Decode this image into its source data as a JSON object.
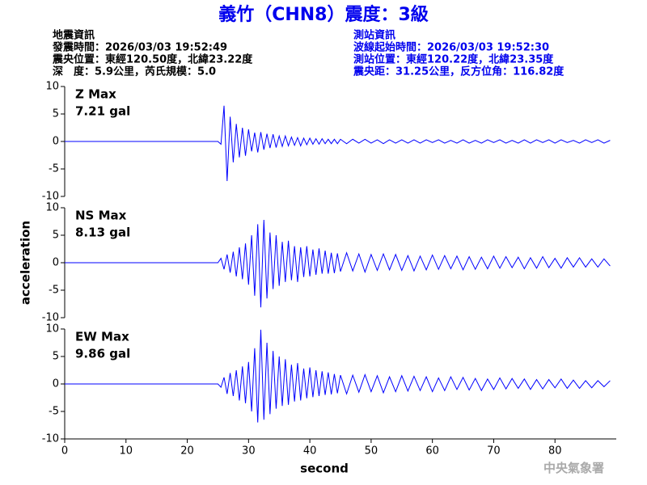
{
  "header": {
    "title": "義竹（CHN8）震度：3級",
    "event": {
      "heading": "地震資訊",
      "lines": [
        "發震時間：2026/03/03 19:52:49",
        "震央位置：東經120.50度，北緯23.22度",
        "深　度：5.9公里，芮氏規模：5.0"
      ]
    },
    "station": {
      "heading": "測站資訊",
      "lines": [
        "波線起始時間：2026/03/03 19:52:30",
        "測站位置：東經120.22度，北緯23.35度",
        "震央距：31.25公里，反方位角：116.82度"
      ]
    }
  },
  "footer": {
    "agency": "中央氣象署"
  },
  "chart_data": [
    {
      "type": "line",
      "annotations": [
        "Z Max",
        "7.21 gal"
      ],
      "annotation_color": "#e00000",
      "x": [
        0,
        25,
        25.5,
        26,
        26.5,
        27,
        27.5,
        28,
        28.5,
        29,
        29.5,
        30,
        30.5,
        31,
        31.5,
        32,
        32.5,
        33,
        33.5,
        34,
        34.5,
        35,
        35.5,
        36,
        36.5,
        37,
        37.5,
        38,
        38.5,
        39,
        39.5,
        40,
        40.5,
        41,
        41.5,
        42,
        42.5,
        43,
        43.5,
        44,
        44.5,
        45,
        46,
        47,
        48,
        49,
        50,
        51,
        52,
        53,
        54,
        55,
        56,
        57,
        58,
        59,
        60,
        61,
        62,
        63,
        64,
        65,
        66,
        67,
        68,
        69,
        70,
        71,
        72,
        73,
        74,
        75,
        76,
        77,
        78,
        79,
        80,
        81,
        82,
        83,
        84,
        85,
        86,
        87,
        88,
        89
      ],
      "series": [
        {
          "color": "#0000ff",
          "values": [
            0,
            0,
            -0.5,
            6.5,
            -7.2,
            4.5,
            -3.8,
            3.2,
            -2.9,
            2.5,
            -2.6,
            2.2,
            -1.8,
            1.6,
            -2.0,
            1.7,
            -1.5,
            1.4,
            -1.2,
            1.3,
            -1.1,
            1.0,
            -0.9,
            1.0,
            -0.8,
            0.8,
            -0.7,
            0.7,
            -0.8,
            0.6,
            -0.6,
            0.6,
            -0.5,
            0.5,
            -0.5,
            0.5,
            -0.4,
            0.4,
            -0.4,
            0.4,
            -0.4,
            0.4,
            -0.4,
            0.4,
            -0.3,
            0.4,
            -0.3,
            0.3,
            -0.4,
            0.3,
            -0.3,
            0.3,
            -0.3,
            0.3,
            -0.3,
            0.3,
            -0.2,
            0.3,
            -0.3,
            0.2,
            -0.3,
            0.3,
            -0.3,
            0.2,
            -0.3,
            0.3,
            -0.2,
            0.3,
            -0.3,
            0.2,
            -0.3,
            0.3,
            -0.3,
            0.3,
            -0.2,
            0.3,
            -0.3,
            0.3,
            -0.2,
            0.2,
            -0.3,
            0.3,
            -0.2,
            0.3,
            -0.3,
            0.2
          ]
        }
      ],
      "xlim": [
        0,
        90
      ],
      "ylim": [
        -10,
        10
      ],
      "yticks": [
        -10,
        -5,
        0,
        5,
        10
      ]
    },
    {
      "type": "line",
      "annotations": [
        "NS Max",
        "8.13 gal"
      ],
      "annotation_color": "#e00000",
      "ylabel": "acceleration",
      "x": [
        0,
        25,
        25.5,
        26,
        26.5,
        27,
        27.5,
        28,
        28.5,
        29,
        29.5,
        30,
        30.5,
        31,
        31.5,
        32,
        32.5,
        33,
        33.5,
        34,
        34.5,
        35,
        35.5,
        36,
        36.5,
        37,
        37.5,
        38,
        38.5,
        39,
        39.5,
        40,
        40.5,
        41,
        41.5,
        42,
        42.5,
        43,
        43.5,
        44,
        44.5,
        45,
        46,
        47,
        48,
        49,
        50,
        51,
        52,
        53,
        54,
        55,
        56,
        57,
        58,
        59,
        60,
        61,
        62,
        63,
        64,
        65,
        66,
        67,
        68,
        69,
        70,
        71,
        72,
        73,
        74,
        75,
        76,
        77,
        78,
        79,
        80,
        81,
        82,
        83,
        84,
        85,
        86,
        87,
        88,
        89
      ],
      "series": [
        {
          "color": "#0000ff",
          "values": [
            0,
            0,
            0.8,
            -1.2,
            1.5,
            -1.8,
            2.0,
            -2.5,
            2.8,
            -3.0,
            3.5,
            -4.0,
            5.0,
            -6.0,
            7.0,
            -8.13,
            7.8,
            -6.5,
            5.5,
            -4.8,
            5.0,
            -4.2,
            3.8,
            -3.5,
            4.0,
            -3.2,
            3.0,
            -3.5,
            2.8,
            -2.6,
            3.0,
            -2.5,
            2.4,
            -2.2,
            2.6,
            -2.0,
            2.2,
            -2.0,
            1.8,
            -1.9,
            1.7,
            -1.6,
            1.8,
            -1.5,
            1.6,
            -1.7,
            1.5,
            -1.4,
            1.6,
            -1.3,
            1.5,
            -1.4,
            1.3,
            -1.5,
            1.2,
            -1.3,
            1.4,
            -1.2,
            1.3,
            -1.1,
            1.2,
            -1.3,
            1.1,
            -1.2,
            1.0,
            -1.1,
            1.2,
            -1.0,
            1.1,
            -0.9,
            1.0,
            -1.1,
            0.9,
            -1.0,
            1.1,
            -0.9,
            0.8,
            -1.0,
            0.9,
            -0.8,
            0.9,
            -0.8,
            0.7,
            -0.8,
            0.7,
            -0.6
          ]
        }
      ],
      "xlim": [
        0,
        90
      ],
      "ylim": [
        -10,
        10
      ],
      "yticks": [
        -10,
        -5,
        0,
        5,
        10
      ]
    },
    {
      "type": "line",
      "annotations": [
        "EW Max",
        "9.86 gal"
      ],
      "annotation_color": "#e00000",
      "xlabel": "second",
      "x": [
        0,
        25,
        25.5,
        26,
        26.5,
        27,
        27.5,
        28,
        28.5,
        29,
        29.5,
        30,
        30.5,
        31,
        31.5,
        32,
        32.5,
        33,
        33.5,
        34,
        34.5,
        35,
        35.5,
        36,
        36.5,
        37,
        37.5,
        38,
        38.5,
        39,
        39.5,
        40,
        40.5,
        41,
        41.5,
        42,
        42.5,
        43,
        43.5,
        44,
        44.5,
        45,
        46,
        47,
        48,
        49,
        50,
        51,
        52,
        53,
        54,
        55,
        56,
        57,
        58,
        59,
        60,
        61,
        62,
        63,
        64,
        65,
        66,
        67,
        68,
        69,
        70,
        71,
        72,
        73,
        74,
        75,
        76,
        77,
        78,
        79,
        80,
        81,
        82,
        83,
        84,
        85,
        86,
        87,
        88,
        89
      ],
      "series": [
        {
          "color": "#0000ff",
          "values": [
            0,
            0,
            -0.6,
            1.2,
            -1.8,
            2.0,
            -2.2,
            2.5,
            -3.0,
            3.2,
            -3.5,
            4.0,
            -5.0,
            6.5,
            -7.0,
            9.86,
            -6.5,
            7.5,
            -5.5,
            6.0,
            -4.5,
            5.0,
            -4.0,
            4.5,
            -3.8,
            3.5,
            -3.2,
            3.8,
            -3.0,
            2.8,
            -2.6,
            3.0,
            -2.4,
            2.5,
            -2.2,
            2.3,
            -2.0,
            2.1,
            -1.9,
            1.8,
            -1.7,
            1.6,
            -1.8,
            1.6,
            -1.5,
            1.7,
            -1.4,
            1.5,
            -1.6,
            1.3,
            -1.4,
            1.5,
            -1.3,
            1.4,
            -1.2,
            1.3,
            -1.4,
            1.1,
            -1.2,
            1.3,
            -1.0,
            1.2,
            -1.1,
            1.0,
            -1.2,
            0.9,
            -1.0,
            1.1,
            -0.9,
            1.0,
            -0.8,
            0.9,
            -1.0,
            0.8,
            -0.9,
            0.8,
            -0.7,
            0.9,
            -0.8,
            0.7,
            -0.8,
            0.6,
            -0.7,
            0.6,
            -0.5,
            0.6
          ]
        }
      ],
      "xlim": [
        0,
        90
      ],
      "xticks": [
        0,
        10,
        20,
        30,
        40,
        50,
        60,
        70,
        80
      ],
      "ylim": [
        -10,
        10
      ],
      "yticks": [
        -10,
        -5,
        0,
        5,
        10
      ]
    }
  ]
}
